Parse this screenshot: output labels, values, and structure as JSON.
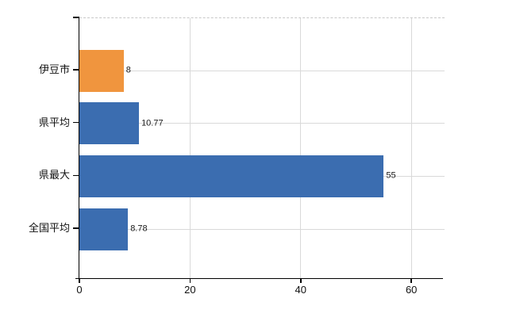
{
  "chart_data": {
    "type": "bar",
    "orientation": "horizontal",
    "title": "",
    "xlabel": "",
    "ylabel": "",
    "categories": [
      "伊豆市",
      "県平均",
      "県最大",
      "全国平均"
    ],
    "values": [
      8,
      10.77,
      55,
      8.78
    ],
    "value_labels": [
      "8",
      "10.77",
      "55",
      "8.78"
    ],
    "bar_colors": [
      "#F0953E",
      "#3B6DB0",
      "#3B6DB0",
      "#3B6DB0"
    ],
    "xlim": [
      0,
      66
    ],
    "x_ticks": [
      0,
      20,
      40,
      60
    ],
    "x_tick_labels": [
      "0",
      "20",
      "40",
      "60"
    ],
    "grid": "on",
    "legend": "none"
  },
  "colors": {
    "bar_orange": "#F0953E",
    "bar_blue": "#3B6DB0",
    "gridline": "#d9d9d9",
    "plot_top_border": "#c8c8c8",
    "axis": "#000000",
    "label_text": "#111111",
    "background": "#ffffff"
  }
}
